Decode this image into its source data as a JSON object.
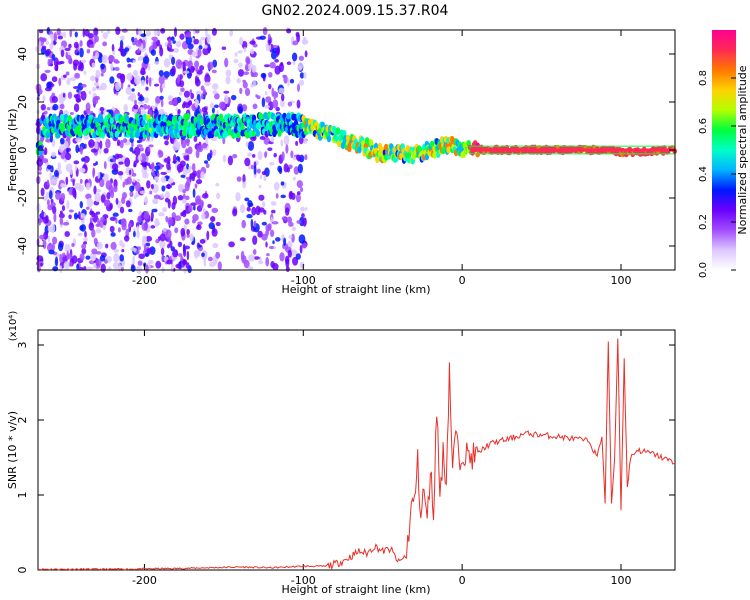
{
  "title": "GN02.2024.009.15.37.R04",
  "colors": {
    "snr_line": "#e8302a",
    "frame": "#000000"
  },
  "chart_data": [
    {
      "type": "heatmap",
      "xlabel": "Height of straight line (km)",
      "ylabel": "Frequency (Hz)",
      "xlim": [
        -267,
        134
      ],
      "ylim": [
        -50,
        50
      ],
      "xticks": [
        -200,
        -100,
        0,
        100
      ],
      "yticks": [
        -40,
        -20,
        0,
        20,
        40
      ],
      "colorbar": {
        "label": "Normalized spectral amplitude",
        "range": [
          0,
          1
        ],
        "ticks": [
          0.0,
          0.2,
          0.4,
          0.6,
          0.8
        ],
        "colormap": [
          "#ffffff",
          "#dcc8ff",
          "#a24bff",
          "#6a00ff",
          "#0018ff",
          "#00b4ff",
          "#00ffc8",
          "#00ff3c",
          "#b4ff00",
          "#ffd200",
          "#ff7800",
          "#ff2a55",
          "#ff0090"
        ]
      },
      "ridge": [
        {
          "x": -265,
          "f": 10
        },
        {
          "x": -240,
          "f": 10
        },
        {
          "x": -200,
          "f": 10
        },
        {
          "x": -160,
          "f": 10
        },
        {
          "x": -140,
          "f": 10
        },
        {
          "x": -110,
          "f": 11
        },
        {
          "x": -100,
          "f": 10
        },
        {
          "x": -90,
          "f": 8
        },
        {
          "x": -80,
          "f": 6
        },
        {
          "x": -70,
          "f": 3
        },
        {
          "x": -60,
          "f": 1
        },
        {
          "x": -50,
          "f": -2
        },
        {
          "x": -40,
          "f": -1
        },
        {
          "x": -30,
          "f": -2
        },
        {
          "x": -20,
          "f": 0
        },
        {
          "x": -10,
          "f": 2
        },
        {
          "x": 0,
          "f": 1
        },
        {
          "x": 10,
          "f": 0
        },
        {
          "x": 50,
          "f": 0
        },
        {
          "x": 90,
          "f": 0
        },
        {
          "x": 100,
          "f": -1
        },
        {
          "x": 134,
          "f": 0
        }
      ]
    },
    {
      "type": "line",
      "xlabel": "Height of straight line (km)",
      "ylabel": "SNR (10 * v/v)",
      "yscale_note": "(x10⁴)",
      "xlim": [
        -267,
        134
      ],
      "ylim": [
        0,
        3.2
      ],
      "xticks": [
        -200,
        -100,
        0,
        100
      ],
      "yticks": [
        0,
        1,
        2,
        3
      ],
      "series": [
        {
          "x": [
            -267,
            -220,
            -180,
            -140,
            -120,
            -100,
            -85,
            -80,
            -75,
            -70,
            -65,
            -60,
            -55,
            -50,
            -45,
            -40,
            -35,
            -32,
            -30,
            -28,
            -26,
            -24,
            -22,
            -20,
            -18,
            -16,
            -14,
            -12,
            -10,
            -8,
            -6,
            -4,
            -2,
            0,
            5,
            10,
            15,
            20,
            30,
            40,
            50,
            60,
            70,
            80,
            85,
            88,
            90,
            92,
            94,
            96,
            98,
            100,
            102,
            104,
            106,
            110,
            120,
            134
          ],
          "y": [
            0.01,
            0.01,
            0.02,
            0.04,
            0.03,
            0.05,
            0.05,
            0.08,
            0.12,
            0.18,
            0.25,
            0.22,
            0.32,
            0.25,
            0.28,
            0.1,
            0.2,
            0.85,
            0.9,
            1.45,
            0.7,
            1.1,
            0.6,
            1.35,
            0.75,
            2.2,
            1.0,
            1.55,
            1.2,
            2.7,
            1.3,
            1.9,
            1.4,
            1.6,
            1.5,
            1.55,
            1.65,
            1.7,
            1.75,
            1.82,
            1.8,
            1.78,
            1.75,
            1.72,
            1.5,
            1.8,
            0.9,
            3.05,
            0.85,
            1.5,
            3.1,
            0.8,
            2.8,
            1.1,
            1.5,
            1.6,
            1.55,
            1.43
          ]
        }
      ]
    }
  ]
}
